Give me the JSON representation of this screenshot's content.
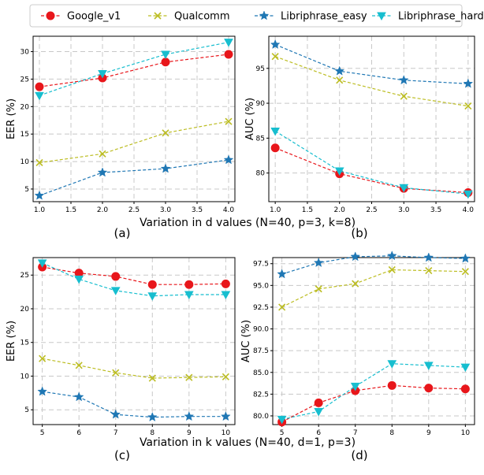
{
  "legend": [
    {
      "name": "Google_v1",
      "color": "#e8161b",
      "marker": "circle"
    },
    {
      "name": "Qualcomm",
      "color": "#bcbd22",
      "marker": "x"
    },
    {
      "name": "Libriphrase_easy",
      "color": "#1f77b4",
      "marker": "star"
    },
    {
      "name": "Libriphrase_hard",
      "color": "#17becf",
      "marker": "triangle-down"
    }
  ],
  "row_titles": [
    "Variation in d values (N=40, p=3, k=8)",
    "Variation in k values (N=40, d=1, p=3)"
  ],
  "chart_data": [
    {
      "type": "line",
      "panel": "(a)",
      "title": "",
      "xlabel": "",
      "ylabel": "EER (%)",
      "x": [
        1.0,
        2.0,
        3.0,
        4.0
      ],
      "xlim": [
        0.9,
        4.1
      ],
      "ylim": [
        2.7,
        32.8
      ],
      "xticks": [
        1.0,
        1.5,
        2.0,
        2.5,
        3.0,
        3.5,
        4.0
      ],
      "xtick_labels": [
        "1.0",
        "1.5",
        "2.0",
        "2.5",
        "3.0",
        "3.5",
        "4.0"
      ],
      "yticks": [
        5,
        10,
        15,
        20,
        25,
        30
      ],
      "ytick_labels": [
        "5",
        "10",
        "15",
        "20",
        "25",
        "30"
      ],
      "series": [
        {
          "name": "Google_v1",
          "values": [
            23.6,
            25.2,
            28.1,
            29.5
          ]
        },
        {
          "name": "Qualcomm",
          "values": [
            9.8,
            11.4,
            15.2,
            17.3
          ]
        },
        {
          "name": "Libriphrase_easy",
          "values": [
            3.8,
            8.0,
            8.7,
            10.3
          ]
        },
        {
          "name": "Libriphrase_hard",
          "values": [
            22.0,
            26.0,
            29.5,
            31.7
          ]
        }
      ]
    },
    {
      "type": "line",
      "panel": "(b)",
      "title": "",
      "xlabel": "",
      "ylabel": "AUC (%)",
      "x": [
        1.0,
        2.0,
        3.0,
        4.0
      ],
      "xlim": [
        0.9,
        4.1
      ],
      "ylim": [
        75.9,
        99.6
      ],
      "xticks": [
        1.0,
        1.5,
        2.0,
        2.5,
        3.0,
        3.5,
        4.0
      ],
      "xtick_labels": [
        "1.0",
        "1.5",
        "2.0",
        "2.5",
        "3.0",
        "3.5",
        "4.0"
      ],
      "yticks": [
        80,
        85,
        90,
        95
      ],
      "ytick_labels": [
        "80",
        "85",
        "90",
        "95"
      ],
      "series": [
        {
          "name": "Google_v1",
          "values": [
            83.6,
            79.9,
            77.8,
            77.2
          ]
        },
        {
          "name": "Qualcomm",
          "values": [
            96.7,
            93.3,
            91.0,
            89.6
          ]
        },
        {
          "name": "Libriphrase_easy",
          "values": [
            98.4,
            94.6,
            93.3,
            92.8
          ]
        },
        {
          "name": "Libriphrase_hard",
          "values": [
            86.0,
            80.3,
            77.9,
            77.0
          ]
        }
      ]
    },
    {
      "type": "line",
      "panel": "(c)",
      "title": "",
      "xlabel": "",
      "ylabel": "EER (%)",
      "x": [
        5,
        6,
        7,
        8,
        9,
        10
      ],
      "xlim": [
        4.75,
        10.25
      ],
      "ylim": [
        2.8,
        27.6
      ],
      "xticks": [
        5,
        6,
        7,
        8,
        9,
        10
      ],
      "xtick_labels": [
        "5",
        "6",
        "7",
        "8",
        "9",
        "10"
      ],
      "yticks": [
        5,
        10,
        15,
        20,
        25
      ],
      "ytick_labels": [
        "5",
        "10",
        "15",
        "20",
        "25"
      ],
      "series": [
        {
          "name": "Google_v1",
          "values": [
            26.2,
            25.3,
            24.8,
            23.6,
            23.6,
            23.7
          ]
        },
        {
          "name": "Qualcomm",
          "values": [
            12.6,
            11.6,
            10.5,
            9.7,
            9.8,
            9.9
          ]
        },
        {
          "name": "Libriphrase_easy",
          "values": [
            7.7,
            6.9,
            4.3,
            3.9,
            4.0,
            4.0
          ]
        },
        {
          "name": "Libriphrase_hard",
          "values": [
            26.8,
            24.4,
            22.7,
            21.9,
            22.1,
            22.1
          ]
        }
      ]
    },
    {
      "type": "line",
      "panel": "(d)",
      "title": "",
      "xlabel": "",
      "ylabel": "AUC (%)",
      "x": [
        5,
        6,
        7,
        8,
        9,
        10
      ],
      "xlim": [
        4.75,
        10.25
      ],
      "ylim": [
        79.0,
        98.2
      ],
      "xticks": [
        5,
        6,
        7,
        8,
        9,
        10
      ],
      "xtick_labels": [
        "5",
        "6",
        "7",
        "8",
        "9",
        "10"
      ],
      "yticks": [
        80.0,
        82.5,
        85.0,
        87.5,
        90.0,
        92.5,
        95.0,
        97.5
      ],
      "ytick_labels": [
        "80.0",
        "82.5",
        "85.0",
        "87.5",
        "90.0",
        "92.5",
        "95.0",
        "97.5"
      ],
      "series": [
        {
          "name": "Google_v1",
          "values": [
            79.3,
            81.5,
            82.9,
            83.5,
            83.2,
            83.1
          ]
        },
        {
          "name": "Qualcomm",
          "values": [
            92.5,
            94.6,
            95.2,
            96.8,
            96.7,
            96.6
          ]
        },
        {
          "name": "Libriphrase_easy",
          "values": [
            96.3,
            97.6,
            98.3,
            98.4,
            98.2,
            98.1
          ]
        },
        {
          "name": "Libriphrase_hard",
          "values": [
            79.6,
            80.5,
            83.4,
            86.0,
            85.8,
            85.6
          ]
        }
      ]
    }
  ]
}
